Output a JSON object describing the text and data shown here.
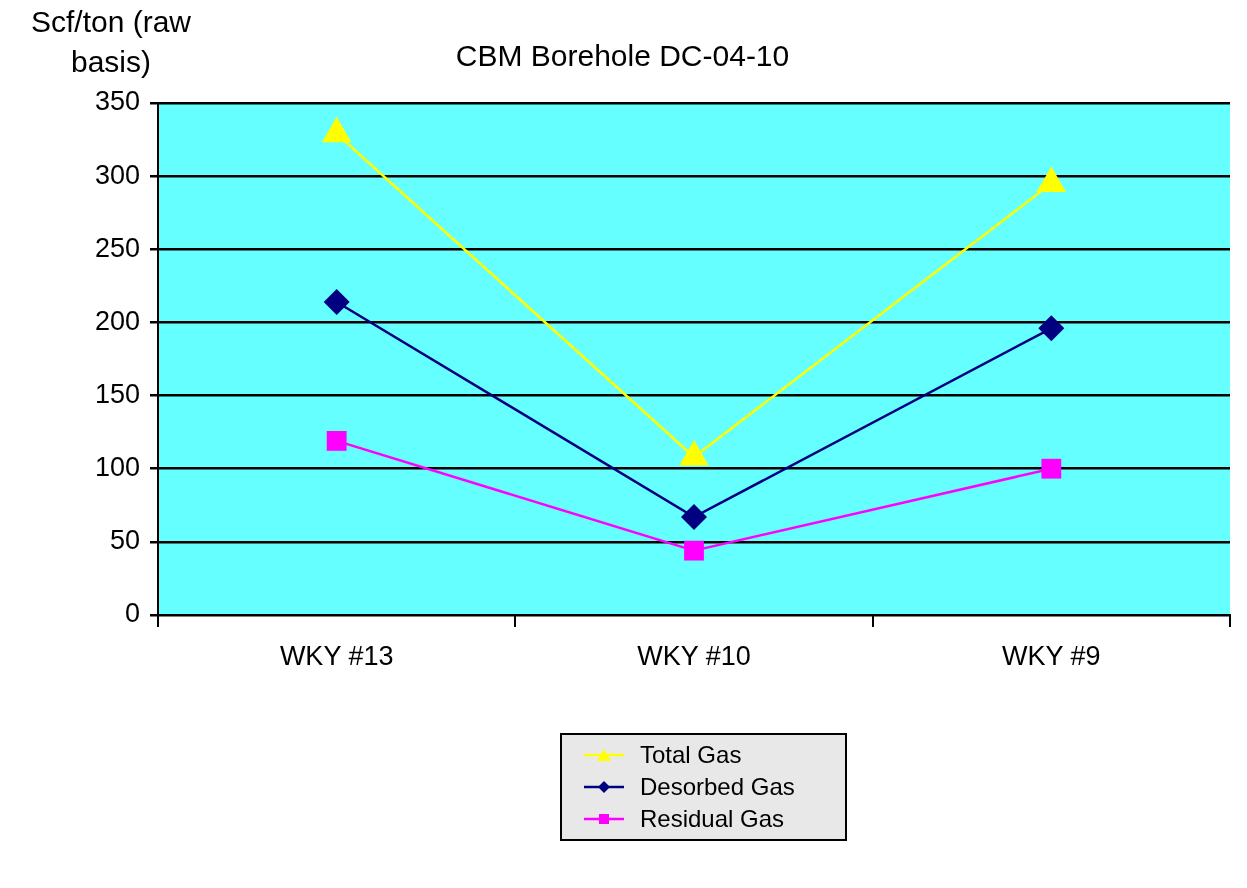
{
  "chart_data": {
    "type": "line",
    "title": "CBM Borehole DC-04-10",
    "ylabel": "Scf/ton (raw basis)",
    "categories": [
      "WKY #13",
      "WKY #10",
      "WKY #9"
    ],
    "series": [
      {
        "name": "Total Gas",
        "color": "#ffff00",
        "marker": "triangle",
        "values": [
          329,
          108,
          295
        ]
      },
      {
        "name": "Desorbed Gas",
        "color": "#000080",
        "marker": "diamond",
        "values": [
          214,
          67,
          196
        ]
      },
      {
        "name": "Residual Gas",
        "color": "#ff00ff",
        "marker": "square",
        "values": [
          119,
          44,
          100
        ]
      }
    ],
    "ylim": [
      0,
      350
    ],
    "yticks": [
      0,
      50,
      100,
      150,
      200,
      250,
      300,
      350
    ],
    "grid": "y",
    "legend": "bottom",
    "line_style": "solid"
  }
}
